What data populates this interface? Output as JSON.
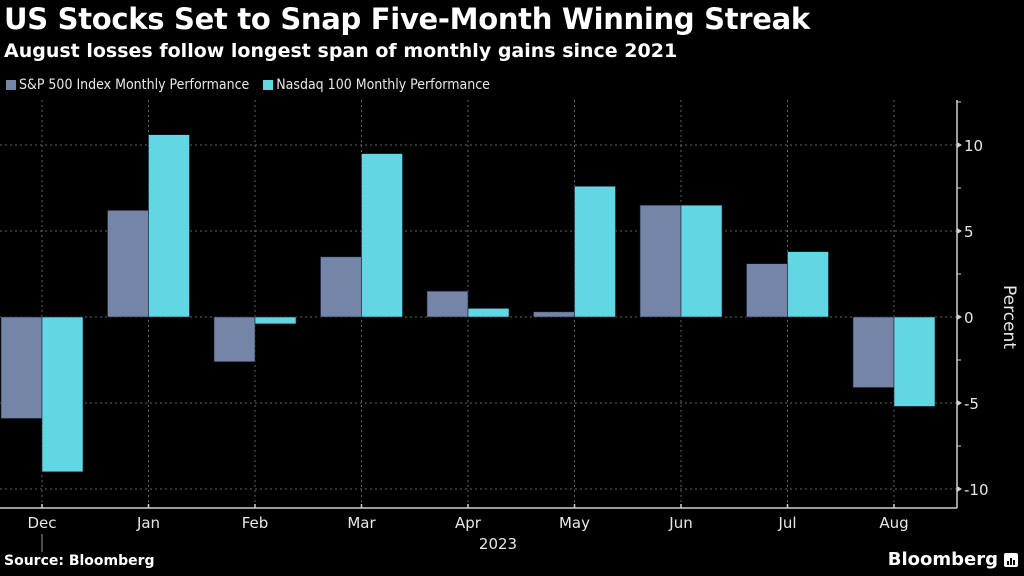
{
  "header": {
    "title": "US Stocks Set to Snap Five-Month Winning Streak",
    "subtitle": "August losses follow longest span of monthly gains since 2021"
  },
  "footer": {
    "source": "Source: Bloomberg",
    "brand": "Bloomberg"
  },
  "chart_data": {
    "type": "bar",
    "title": "US Stocks Set to Snap Five-Month Winning Streak",
    "subtitle": "August losses follow longest span of monthly gains since 2021",
    "categories": [
      "Dec",
      "Jan",
      "Feb",
      "Mar",
      "Apr",
      "May",
      "Jun",
      "Jul",
      "Aug"
    ],
    "year_label": "2023",
    "series": [
      {
        "name": "S&P 500 Index Monthly Performance",
        "color": "#7485a8",
        "values": [
          -5.9,
          6.2,
          -2.6,
          3.5,
          1.5,
          0.3,
          6.5,
          3.1,
          -4.1
        ]
      },
      {
        "name": "Nasdaq 100 Monthly Performance",
        "color": "#63d6e3",
        "values": [
          -9.0,
          10.6,
          -0.4,
          9.5,
          0.5,
          7.6,
          6.5,
          3.8,
          -5.2
        ]
      }
    ],
    "xlabel": "",
    "ylabel": "Percent",
    "ylim": [
      -11.0,
      12.5
    ],
    "yticks": [
      10,
      5,
      0,
      -5,
      -10
    ],
    "grid": true,
    "legend_position": "top-left",
    "y_axis_side": "right"
  }
}
